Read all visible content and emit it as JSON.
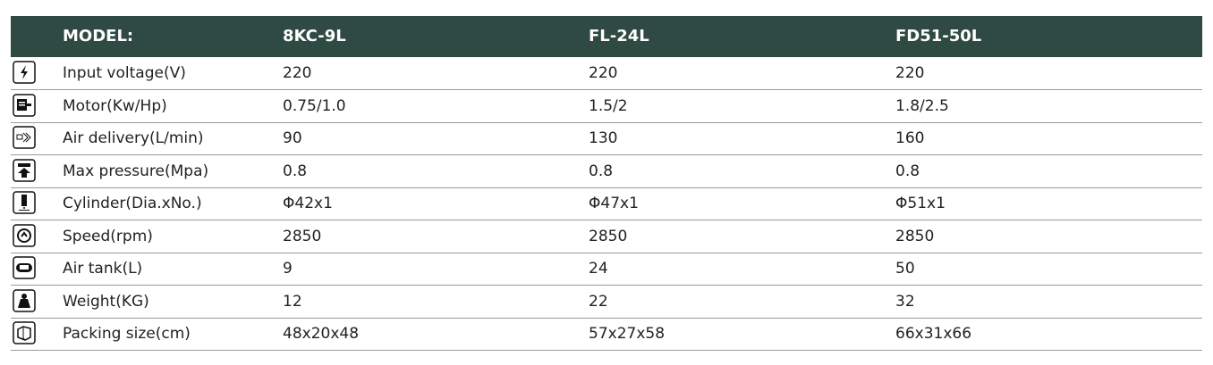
{
  "header": [
    "MODEL:",
    "8KC-9L",
    "FL-24L",
    "FD51-50L"
  ],
  "rows": [
    [
      "Input voltage(V)",
      "220",
      "220",
      "220"
    ],
    [
      "Motor(Kw/Hp)",
      "0.75/1.0",
      "1.5/2",
      "1.8/2.5"
    ],
    [
      "Air delivery(L/min)",
      "90",
      "130",
      "160"
    ],
    [
      "Max pressure(Mpa)",
      "0.8",
      "0.8",
      "0.8"
    ],
    [
      "Cylinder(Dia.xNo.)",
      "Φ42x1",
      "Φ47x1",
      "Φ51x1"
    ],
    [
      "Speed(rpm)",
      "2850",
      "2850",
      "2850"
    ],
    [
      "Air tank(L)",
      "9",
      "24",
      "50"
    ],
    [
      "Weight(KG)",
      "12",
      "22",
      "32"
    ],
    [
      "Packing size(cm)",
      "48x20x48",
      "57x27x58",
      "66x31x66"
    ]
  ]
}
